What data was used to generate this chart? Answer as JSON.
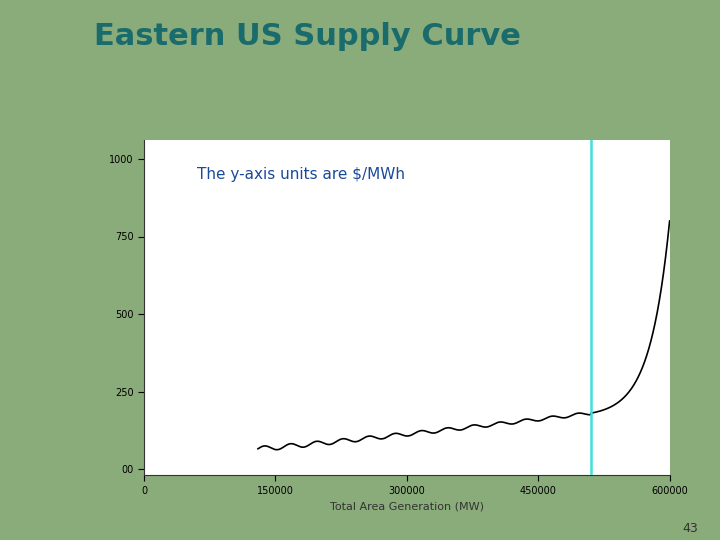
{
  "title": "Eastern US Supply Curve",
  "title_color": "#1a6b6b",
  "title_fontsize": 22,
  "header_bar_color": "#0d3560",
  "bg_color": "#8aab7a",
  "slide_bg": "#ffffff",
  "annotation_text": "The y-axis units are $/MWh",
  "annotation_fontsize": 11,
  "annotation_color": "#1a4a9a",
  "xlabel": "Total Area Generation (MW)",
  "xlabel_fontsize": 8,
  "ylabel_ticks": [
    0,
    250,
    500,
    750,
    1000
  ],
  "ytick_labels": [
    "00",
    "250",
    "500",
    "750",
    "1000"
  ],
  "xlim": [
    0,
    600000
  ],
  "ylim": [
    -20,
    1060
  ],
  "xticks": [
    0,
    150000,
    300000,
    450000,
    600000
  ],
  "xtick_labels": [
    "0",
    "150000",
    "300000",
    "450000",
    "600000"
  ],
  "vertical_line_x": 510000,
  "vertical_line_color": "#40e0e0",
  "curve_color": "#000000",
  "page_number": "43"
}
